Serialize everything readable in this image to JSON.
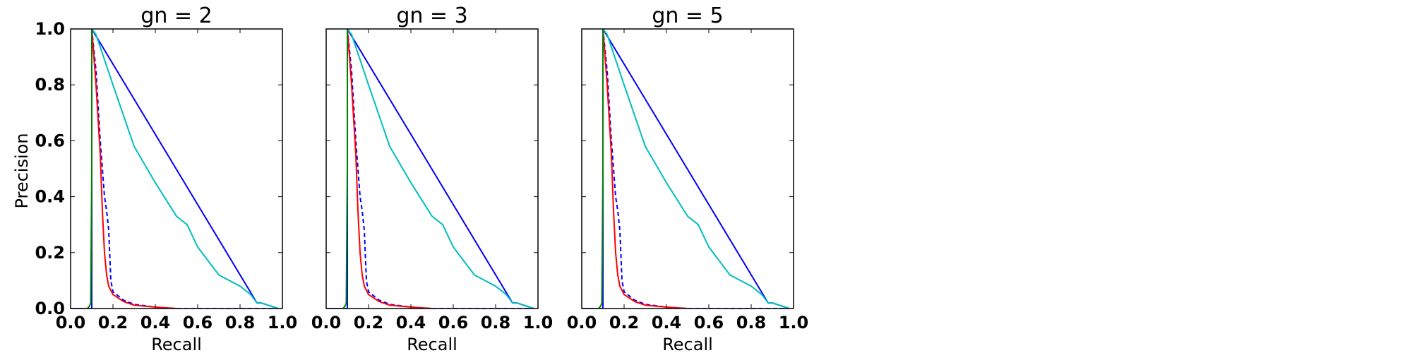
{
  "chart_data": [
    {
      "type": "line",
      "title": "gn = 2",
      "xlabel": "Recall",
      "ylabel": "Precision",
      "xlim": [
        0.0,
        1.0
      ],
      "ylim": [
        0.0,
        1.0
      ],
      "xticks": [
        "0.0",
        "0.2",
        "0.4",
        "0.6",
        "0.8",
        "1.0"
      ],
      "yticks": [
        "0.0",
        "0.2",
        "0.4",
        "0.6",
        "0.8",
        "1.0"
      ],
      "grid": false,
      "series": [
        {
          "color": "#0000ff",
          "style": "solid",
          "x": [
            0.0,
            0.1,
            0.1,
            0.88,
            0.9,
            0.98
          ],
          "y": [
            0.0,
            0.0,
            1.0,
            0.02,
            0.02,
            0.0
          ]
        },
        {
          "color": "#00bfbf",
          "style": "solid",
          "x": [
            0.1,
            0.12,
            0.2,
            0.3,
            0.4,
            0.5,
            0.55,
            0.6,
            0.7,
            0.8,
            0.85,
            0.88,
            0.9,
            0.98
          ],
          "y": [
            1.0,
            0.98,
            0.8,
            0.58,
            0.45,
            0.33,
            0.3,
            0.22,
            0.12,
            0.08,
            0.05,
            0.02,
            0.02,
            0.0
          ]
        },
        {
          "color": "#0000ff",
          "style": "dashed",
          "x": [
            0.1,
            0.12,
            0.14,
            0.15,
            0.16,
            0.17,
            0.18,
            0.19,
            0.2,
            0.25,
            0.3,
            0.4,
            0.5,
            0.98
          ],
          "y": [
            1.0,
            0.85,
            0.6,
            0.5,
            0.4,
            0.35,
            0.28,
            0.1,
            0.06,
            0.03,
            0.015,
            0.005,
            0.0,
            0.0
          ]
        },
        {
          "color": "#ff0000",
          "style": "solid",
          "x": [
            0.1,
            0.11,
            0.12,
            0.14,
            0.15,
            0.16,
            0.17,
            0.18,
            0.2,
            0.25,
            0.3,
            0.4,
            0.5
          ],
          "y": [
            1.0,
            0.9,
            0.8,
            0.55,
            0.35,
            0.2,
            0.12,
            0.08,
            0.05,
            0.025,
            0.012,
            0.005,
            0.0
          ]
        },
        {
          "color": "#008000",
          "style": "solid",
          "x": [
            0.05,
            0.08,
            0.09,
            0.095,
            0.1,
            0.1
          ],
          "y": [
            0.0,
            0.0,
            0.01,
            0.02,
            0.5,
            1.0
          ]
        }
      ]
    },
    {
      "type": "line",
      "title": "gn = 3",
      "xlabel": "Recall",
      "ylabel": "",
      "xlim": [
        0.0,
        1.0
      ],
      "ylim": [
        0.0,
        1.0
      ],
      "xticks": [
        "0.0",
        "0.2",
        "0.4",
        "0.6",
        "0.8",
        "1.0"
      ],
      "yticks": [],
      "grid": false,
      "series": [
        {
          "color": "#0000ff",
          "style": "solid",
          "x": [
            0.0,
            0.1,
            0.1,
            0.88,
            0.9,
            0.98
          ],
          "y": [
            0.0,
            0.0,
            1.0,
            0.02,
            0.02,
            0.0
          ]
        },
        {
          "color": "#00bfbf",
          "style": "solid",
          "x": [
            0.1,
            0.12,
            0.2,
            0.3,
            0.4,
            0.5,
            0.55,
            0.6,
            0.7,
            0.8,
            0.85,
            0.88,
            0.9,
            0.98
          ],
          "y": [
            1.0,
            0.98,
            0.8,
            0.58,
            0.45,
            0.33,
            0.3,
            0.22,
            0.12,
            0.08,
            0.05,
            0.02,
            0.02,
            0.0
          ]
        },
        {
          "color": "#0000ff",
          "style": "dashed",
          "x": [
            0.1,
            0.12,
            0.14,
            0.15,
            0.16,
            0.17,
            0.18,
            0.19,
            0.2,
            0.25,
            0.3,
            0.4,
            0.5,
            0.98
          ],
          "y": [
            1.0,
            0.85,
            0.6,
            0.5,
            0.4,
            0.35,
            0.28,
            0.1,
            0.06,
            0.03,
            0.015,
            0.005,
            0.0,
            0.0
          ]
        },
        {
          "color": "#ff0000",
          "style": "solid",
          "x": [
            0.1,
            0.11,
            0.12,
            0.14,
            0.15,
            0.16,
            0.17,
            0.18,
            0.2,
            0.25,
            0.3,
            0.4,
            0.5
          ],
          "y": [
            1.0,
            0.9,
            0.8,
            0.55,
            0.35,
            0.2,
            0.12,
            0.08,
            0.05,
            0.025,
            0.012,
            0.005,
            0.0
          ]
        },
        {
          "color": "#008000",
          "style": "solid",
          "x": [
            0.05,
            0.08,
            0.09,
            0.095,
            0.1,
            0.1
          ],
          "y": [
            0.0,
            0.0,
            0.01,
            0.02,
            0.5,
            1.0
          ]
        }
      ]
    },
    {
      "type": "line",
      "title": "gn = 5",
      "xlabel": "Recall",
      "ylabel": "",
      "xlim": [
        0.0,
        1.0
      ],
      "ylim": [
        0.0,
        1.0
      ],
      "xticks": [
        "0.0",
        "0.2",
        "0.4",
        "0.6",
        "0.8",
        "1.0"
      ],
      "yticks": [],
      "grid": false,
      "series": [
        {
          "color": "#0000ff",
          "style": "solid",
          "x": [
            0.0,
            0.1,
            0.1,
            0.88,
            0.9,
            0.98
          ],
          "y": [
            0.0,
            0.0,
            1.0,
            0.02,
            0.02,
            0.0
          ]
        },
        {
          "color": "#00bfbf",
          "style": "solid",
          "x": [
            0.1,
            0.12,
            0.2,
            0.3,
            0.4,
            0.5,
            0.55,
            0.6,
            0.7,
            0.8,
            0.85,
            0.88,
            0.9,
            0.98
          ],
          "y": [
            1.0,
            0.98,
            0.8,
            0.58,
            0.45,
            0.33,
            0.3,
            0.22,
            0.12,
            0.08,
            0.05,
            0.02,
            0.02,
            0.0
          ]
        },
        {
          "color": "#0000ff",
          "style": "dashed",
          "x": [
            0.1,
            0.12,
            0.14,
            0.15,
            0.16,
            0.17,
            0.18,
            0.19,
            0.2,
            0.25,
            0.3,
            0.4,
            0.5,
            0.98
          ],
          "y": [
            1.0,
            0.85,
            0.6,
            0.5,
            0.4,
            0.35,
            0.28,
            0.1,
            0.06,
            0.03,
            0.015,
            0.005,
            0.0,
            0.0
          ]
        },
        {
          "color": "#ff0000",
          "style": "solid",
          "x": [
            0.1,
            0.11,
            0.12,
            0.14,
            0.15,
            0.16,
            0.17,
            0.18,
            0.2,
            0.25,
            0.3,
            0.4,
            0.5
          ],
          "y": [
            1.0,
            0.9,
            0.8,
            0.55,
            0.35,
            0.2,
            0.12,
            0.08,
            0.05,
            0.025,
            0.012,
            0.005,
            0.0
          ]
        },
        {
          "color": "#008000",
          "style": "solid",
          "x": [
            0.05,
            0.08,
            0.09,
            0.095,
            0.1,
            0.1
          ],
          "y": [
            0.0,
            0.0,
            0.01,
            0.02,
            0.5,
            1.0
          ]
        }
      ]
    }
  ]
}
